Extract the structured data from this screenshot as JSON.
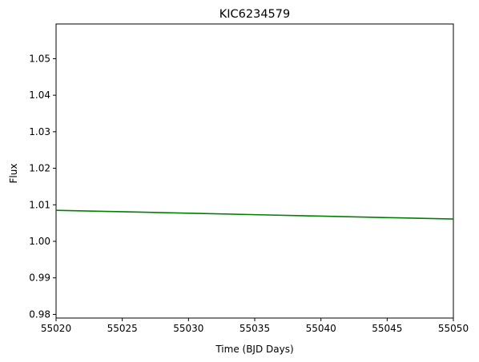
{
  "chart_data": {
    "type": "line",
    "title": "KIC6234579",
    "xlabel": "Time (BJD Days)",
    "ylabel": "Flux",
    "xlim": [
      55020,
      55050
    ],
    "ylim": [
      0.979,
      1.0595
    ],
    "xticks": [
      55020,
      55025,
      55030,
      55035,
      55040,
      55045,
      55050
    ],
    "yticks": [
      0.98,
      0.99,
      1.0,
      1.01,
      1.02,
      1.03,
      1.04,
      1.05
    ],
    "yticks_labels": [
      "0.98",
      "0.99",
      "1.00",
      "1.01",
      "1.02",
      "1.03",
      "1.04",
      "1.05"
    ],
    "grid": false,
    "series": [
      {
        "color": "#008000",
        "x": [
          55020,
          55025,
          55030,
          55035,
          55040,
          55045,
          55050
        ],
        "y": [
          1.0085,
          1.0081,
          1.0077,
          1.0073,
          1.0069,
          1.0065,
          1.0061
        ]
      }
    ]
  }
}
